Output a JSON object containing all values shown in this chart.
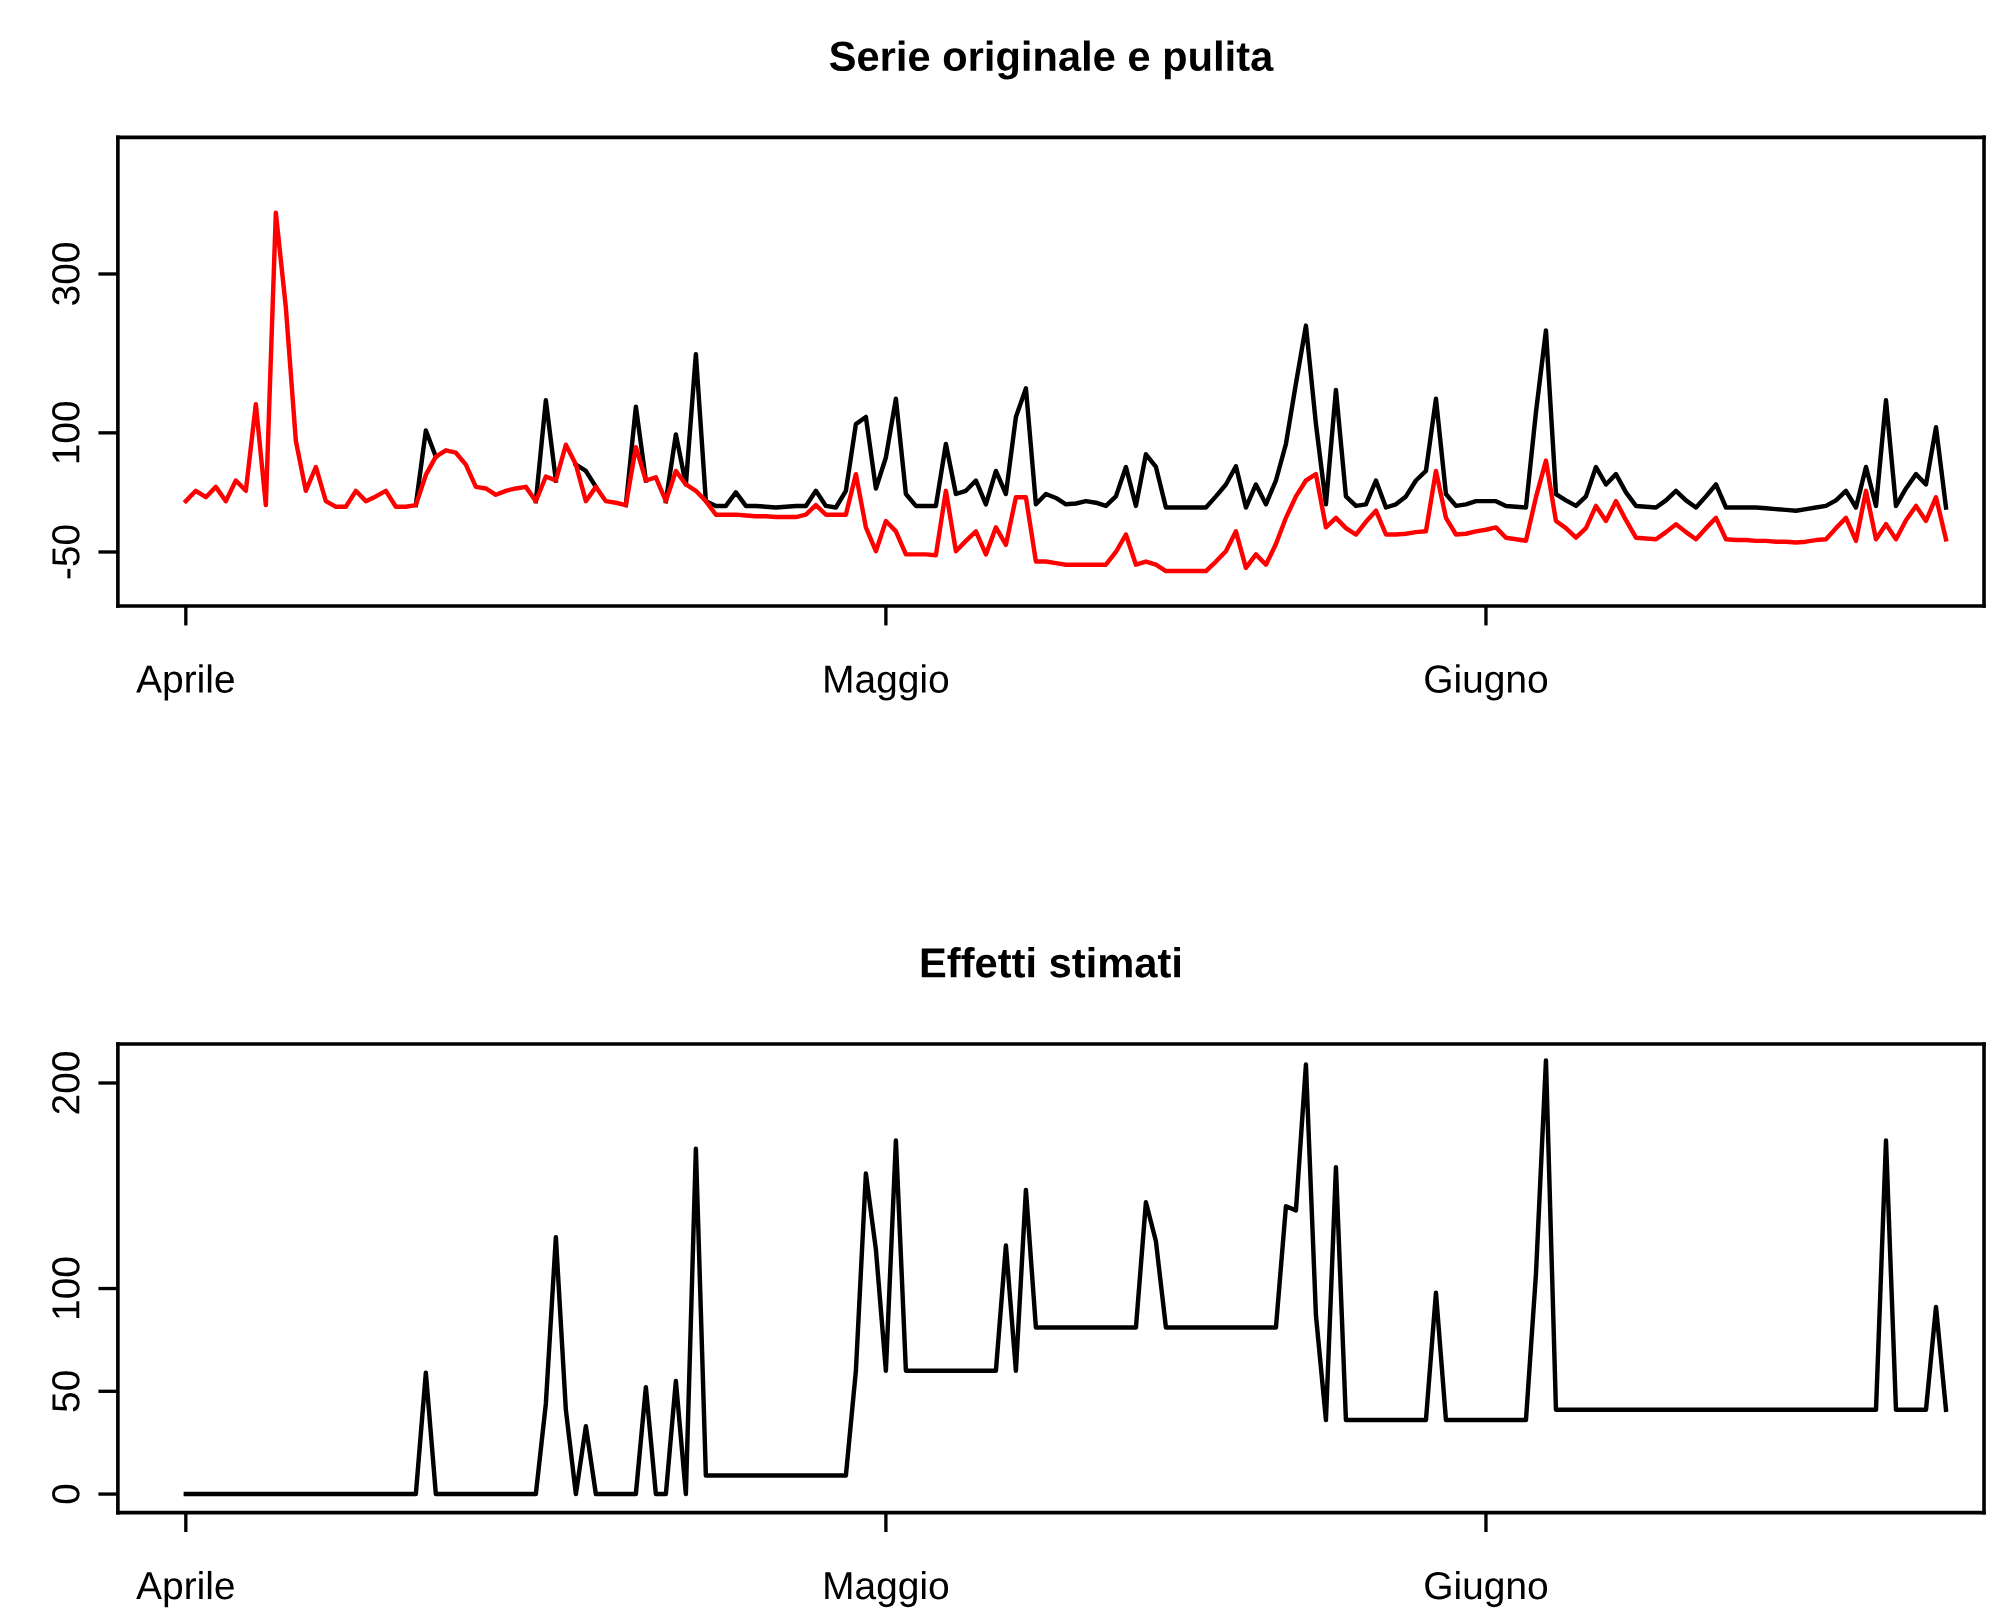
{
  "chart_data": [
    {
      "type": "line",
      "title": "Serie originale e pulita",
      "categories": [
        "Aprile",
        null,
        null,
        null,
        null,
        null,
        null,
        null,
        null,
        null,
        null,
        null,
        null,
        null,
        null,
        null,
        null,
        null,
        null,
        null,
        null,
        null,
        null,
        null,
        null,
        null,
        null,
        null,
        null,
        null,
        null,
        null,
        null,
        null,
        null,
        null,
        null,
        null,
        null,
        null,
        null,
        null,
        null,
        null,
        null,
        null,
        null,
        null,
        null,
        null,
        null,
        null,
        null,
        null,
        null,
        null,
        null,
        null,
        null,
        null,
        null,
        null,
        null,
        null,
        null,
        null,
        null,
        null,
        null,
        null,
        "Maggio",
        null,
        null,
        null,
        null,
        null,
        null,
        null,
        null,
        null,
        null,
        null,
        null,
        null,
        null,
        null,
        null,
        null,
        null,
        null,
        null,
        null,
        null,
        null,
        null,
        null,
        null,
        null,
        null,
        null,
        null,
        null,
        null,
        null,
        null,
        null,
        null,
        null,
        null,
        null,
        null,
        null,
        null,
        null,
        null,
        null,
        null,
        null,
        null,
        null,
        null,
        null,
        null,
        null,
        null,
        null,
        null,
        null,
        null,
        null,
        "Giugno",
        null,
        null,
        null,
        null,
        null,
        null,
        null,
        null,
        null,
        null,
        null,
        null,
        null,
        null,
        null,
        null,
        null,
        null,
        null,
        null,
        null,
        null,
        null,
        null,
        null,
        null,
        null,
        null,
        null,
        null,
        null,
        null,
        null,
        null,
        null,
        null,
        null,
        null,
        null,
        null,
        null,
        null,
        null,
        null,
        null,
        null
      ],
      "ylim": [
        -118,
        472
      ],
      "yticks": [
        -50,
        100,
        300
      ],
      "series": [
        {
          "color": "#000000",
          "values": [
            null,
            null,
            null,
            null,
            null,
            null,
            null,
            null,
            null,
            null,
            null,
            null,
            null,
            null,
            null,
            null,
            null,
            null,
            null,
            null,
            null,
            null,
            null,
            9,
            103,
            70,
            null,
            null,
            null,
            null,
            null,
            null,
            null,
            null,
            null,
            14,
            141,
            40,
            null,
            60,
            52,
            32,
            null,
            null,
            9,
            133,
            40,
            null,
            14,
            98,
            35,
            199,
            14,
            8,
            8,
            25,
            8,
            8,
            7,
            6,
            7,
            8,
            8,
            27,
            8,
            6,
            27,
            111,
            120,
            30,
            69,
            143,
            23,
            8,
            8,
            8,
            86,
            23,
            27,
            40,
            10,
            52,
            23,
            120,
            156,
            10,
            23,
            18,
            10,
            11,
            14,
            12,
            8,
            20,
            57,
            8,
            73,
            57,
            6,
            6,
            6,
            6,
            6,
            20,
            35,
            58,
            6,
            35,
            10,
            40,
            86,
            162,
            235,
            111,
            10,
            154,
            20,
            8,
            10,
            40,
            6,
            10,
            20,
            40,
            52,
            143,
            23,
            8,
            10,
            14,
            14,
            14,
            8,
            7,
            6,
            126,
            229,
            23,
            15,
            8,
            20,
            57,
            35,
            48,
            25,
            8,
            7,
            6,
            15,
            27,
            15,
            6,
            20,
            35,
            6,
            6,
            6,
            6,
            5,
            4,
            3,
            2,
            4,
            6,
            8,
            15,
            27,
            6,
            57,
            8,
            141,
            8,
            30,
            48,
            35,
            107,
            6
          ]
        },
        {
          "color": "#ff0000",
          "values": [
            14,
            27,
            19,
            32,
            14,
            40,
            27,
            136,
            9,
            377,
            258,
            90,
            27,
            57,
            14,
            7,
            7,
            27,
            14,
            20,
            27,
            7,
            7,
            9,
            47,
            70,
            78,
            75,
            60,
            32,
            30,
            22,
            27,
            30,
            32,
            14,
            45,
            40,
            85,
            60,
            14,
            32,
            14,
            12,
            9,
            82,
            40,
            44,
            14,
            52,
            35,
            27,
            14,
            -3,
            -3,
            -3,
            -4,
            -5,
            -5,
            -6,
            -6,
            -6,
            -3,
            9,
            -3,
            -3,
            -3,
            48,
            -19,
            -49,
            -11,
            -24,
            -53,
            -53,
            -53,
            -54,
            27,
            -49,
            -36,
            -24,
            -53,
            -19,
            -41,
            19,
            19,
            -62,
            -62,
            -64,
            -66,
            -66,
            -66,
            -66,
            -66,
            -50,
            -28,
            -66,
            -62,
            -66,
            -74,
            -74,
            -74,
            -74,
            -74,
            -62,
            -49,
            -24,
            -70,
            -53,
            -66,
            -40,
            -7,
            20,
            40,
            48,
            -19,
            -7,
            -20,
            -28,
            -12,
            2,
            -28,
            -28,
            -27,
            -25,
            -24,
            52,
            -7,
            -28,
            -27,
            -24,
            -22,
            -19,
            -32,
            -34,
            -36,
            19,
            65,
            -11,
            -20,
            -32,
            -20,
            8,
            -11,
            14,
            -10,
            -32,
            -33,
            -34,
            -25,
            -15,
            -25,
            -34,
            -20,
            -7,
            -34,
            -35,
            -35,
            -36,
            -36,
            -37,
            -37,
            -38,
            -37,
            -35,
            -34,
            -20,
            -7,
            -36,
            27,
            -34,
            -15,
            -34,
            -10,
            8,
            -11,
            19,
            -34
          ]
        }
      ]
    },
    {
      "type": "line",
      "title": "Effetti stimati",
      "categories": [
        "Aprile",
        null,
        null,
        null,
        null,
        null,
        null,
        null,
        null,
        null,
        null,
        null,
        null,
        null,
        null,
        null,
        null,
        null,
        null,
        null,
        null,
        null,
        null,
        null,
        null,
        null,
        null,
        null,
        null,
        null,
        null,
        null,
        null,
        null,
        null,
        null,
        null,
        null,
        null,
        null,
        null,
        null,
        null,
        null,
        null,
        null,
        null,
        null,
        null,
        null,
        null,
        null,
        null,
        null,
        null,
        null,
        null,
        null,
        null,
        null,
        null,
        null,
        null,
        null,
        null,
        null,
        null,
        null,
        null,
        null,
        "Maggio",
        null,
        null,
        null,
        null,
        null,
        null,
        null,
        null,
        null,
        null,
        null,
        null,
        null,
        null,
        null,
        null,
        null,
        null,
        null,
        null,
        null,
        null,
        null,
        null,
        null,
        null,
        null,
        null,
        null,
        null,
        null,
        null,
        null,
        null,
        null,
        null,
        null,
        null,
        null,
        null,
        null,
        null,
        null,
        null,
        null,
        null,
        null,
        null,
        null,
        null,
        null,
        null,
        null,
        null,
        null,
        null,
        null,
        null,
        null,
        "Giugno",
        null,
        null,
        null,
        null,
        null,
        null,
        null,
        null,
        null,
        null,
        null,
        null,
        null,
        null,
        null,
        null,
        null,
        null,
        null,
        null,
        null,
        null,
        null,
        null,
        null,
        null,
        null,
        null,
        null,
        null,
        null,
        null,
        null,
        null,
        null,
        null,
        null,
        null,
        null,
        null,
        null,
        null,
        null,
        null,
        null,
        null
      ],
      "ylim": [
        -9,
        219
      ],
      "yticks": [
        0,
        50,
        100,
        200
      ],
      "series": [
        {
          "color": "#000000",
          "values": [
            0,
            0,
            0,
            0,
            0,
            0,
            0,
            0,
            0,
            0,
            0,
            0,
            0,
            0,
            0,
            0,
            0,
            0,
            0,
            0,
            0,
            0,
            0,
            0,
            59,
            0,
            0,
            0,
            0,
            0,
            0,
            0,
            0,
            0,
            0,
            0,
            44,
            125,
            41,
            0,
            33,
            0,
            0,
            0,
            0,
            0,
            52,
            0,
            0,
            55,
            0,
            168,
            9,
            9,
            9,
            9,
            9,
            9,
            9,
            9,
            9,
            9,
            9,
            9,
            9,
            9,
            9,
            60,
            156,
            119,
            60,
            172,
            60,
            60,
            60,
            60,
            60,
            60,
            60,
            60,
            60,
            60,
            121,
            60,
            148,
            81,
            81,
            81,
            81,
            81,
            81,
            81,
            81,
            81,
            81,
            81,
            142,
            123,
            81,
            81,
            81,
            81,
            81,
            81,
            81,
            81,
            81,
            81,
            81,
            81,
            140,
            138,
            209,
            87,
            36,
            159,
            36,
            36,
            36,
            36,
            36,
            36,
            36,
            36,
            36,
            98,
            36,
            36,
            36,
            36,
            36,
            36,
            36,
            36,
            36,
            107,
            211,
            41,
            41,
            41,
            41,
            41,
            41,
            41,
            41,
            41,
            41,
            41,
            41,
            41,
            41,
            41,
            41,
            41,
            41,
            41,
            41,
            41,
            41,
            41,
            41,
            41,
            41,
            41,
            41,
            41,
            41,
            41,
            41,
            41,
            172,
            41,
            41,
            41,
            41,
            91,
            41
          ]
        }
      ]
    }
  ]
}
